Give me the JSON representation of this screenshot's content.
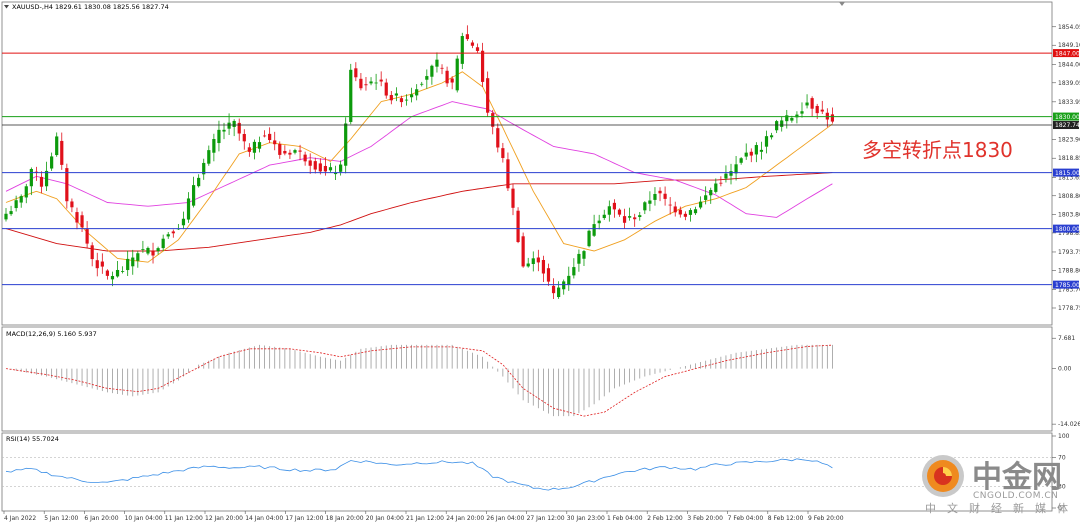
{
  "header": {
    "menu_icon": "triangle-down-icon",
    "symbol_line": "XAUUSD-,H4  1829.61 1830.08 1825.56 1827.74",
    "macd_label": "MACD(12,26,9) 5.160 5.937",
    "rsi_label": "RSI(14) 55.7024"
  },
  "annotation": {
    "text": "多空转折点1830",
    "color": "#e0322b"
  },
  "watermark": {
    "title": "中金网",
    "url": "CNGOLD.COM.CN",
    "subtitle": "中文财经新媒体"
  },
  "colors": {
    "bull": "#0c9a0c",
    "bear": "#e0101a",
    "ma_fast": "#f0a020",
    "ma_mid": "#e040e0",
    "ma_slow": "#d01010",
    "resistance": "#e01010",
    "support": "#2a3fd0",
    "pivot": "#18a018",
    "macd_signal": "#e02020",
    "rsi_line": "#3a8ee6"
  },
  "chart_data": [
    {
      "type": "candlestick",
      "symbol": "XAUUSD-",
      "timeframe": "H4",
      "ylim": [
        1775,
        1858
      ],
      "price_ticks": [
        "1854.05",
        "1849.10",
        "1844.00",
        "1839.05",
        "1833.95",
        "1823.90",
        "1818.85",
        "1813.65",
        "1808.80",
        "1803.80",
        "1798.85",
        "1793.75",
        "1788.80",
        "1783.70",
        "1778.75"
      ],
      "x_ticks": [
        "4 Jan 2022",
        "5 Jan 12:00",
        "6 Jan 20:00",
        "10 Jan 04:00",
        "11 Jan 12:00",
        "12 Jan 20:00",
        "14 Jan 04:00",
        "17 Jan 12:00",
        "18 Jan 20:00",
        "20 Jan 04:00",
        "21 Jan 12:00",
        "24 Jan 20:00",
        "26 Jan 04:00",
        "27 Jan 12:00",
        "30 Jan 23:00",
        "1 Feb 04:00",
        "2 Feb 12:00",
        "3 Feb 20:00",
        "7 Feb 04:00",
        "8 Feb 12:00",
        "9 Feb 20:00"
      ],
      "horizontal_levels": [
        {
          "price": 1847.0,
          "label": "1847.00",
          "color": "#e01010"
        },
        {
          "price": 1830.0,
          "label": "1830.00",
          "color": "#18a018"
        },
        {
          "price": 1827.74,
          "label": "1827.74",
          "color": "#222222"
        },
        {
          "price": 1815.0,
          "label": "1815.00",
          "color": "#2a3fd0"
        },
        {
          "price": 1800.0,
          "label": "1800.00",
          "color": "#2a3fd0"
        },
        {
          "price": 1785.0,
          "label": "1785.00",
          "color": "#2a3fd0"
        }
      ],
      "anchors": [
        [
          0,
          1804
        ],
        [
          3,
          1808
        ],
        [
          5,
          1816
        ],
        [
          7,
          1812
        ],
        [
          10,
          1824
        ],
        [
          12,
          1808
        ],
        [
          15,
          1800
        ],
        [
          17,
          1792
        ],
        [
          20,
          1787
        ],
        [
          23,
          1789
        ],
        [
          26,
          1794
        ],
        [
          29,
          1794
        ],
        [
          32,
          1799
        ],
        [
          35,
          1802
        ],
        [
          37,
          1812
        ],
        [
          40,
          1820
        ],
        [
          42,
          1826
        ],
        [
          45,
          1828
        ],
        [
          48,
          1820
        ],
        [
          51,
          1826
        ],
        [
          54,
          1820
        ],
        [
          57,
          1821
        ],
        [
          60,
          1818
        ],
        [
          63,
          1815
        ],
        [
          66,
          1816
        ],
        [
          68,
          1842
        ],
        [
          70,
          1838
        ],
        [
          73,
          1840
        ],
        [
          76,
          1835
        ],
        [
          79,
          1835
        ],
        [
          82,
          1840
        ],
        [
          85,
          1844
        ],
        [
          88,
          1838
        ],
        [
          90,
          1852
        ],
        [
          93,
          1848
        ],
        [
          95,
          1831
        ],
        [
          98,
          1818
        ],
        [
          100,
          1805
        ],
        [
          102,
          1790
        ],
        [
          105,
          1792
        ],
        [
          108,
          1782
        ],
        [
          111,
          1788
        ],
        [
          114,
          1795
        ],
        [
          116,
          1802
        ],
        [
          119,
          1806
        ],
        [
          122,
          1802
        ],
        [
          125,
          1804
        ],
        [
          128,
          1810
        ],
        [
          131,
          1806
        ],
        [
          134,
          1804
        ],
        [
          137,
          1807
        ],
        [
          140,
          1812
        ],
        [
          143,
          1815
        ],
        [
          146,
          1820
        ],
        [
          149,
          1822
        ],
        [
          152,
          1828
        ],
        [
          155,
          1830
        ],
        [
          158,
          1834
        ],
        [
          160,
          1832
        ],
        [
          162,
          1830
        ],
        [
          163,
          1828
        ]
      ],
      "ma_fast_anchors": [
        [
          0,
          1807
        ],
        [
          6,
          1810
        ],
        [
          10,
          1808
        ],
        [
          16,
          1799
        ],
        [
          22,
          1792
        ],
        [
          28,
          1791
        ],
        [
          34,
          1797
        ],
        [
          40,
          1808
        ],
        [
          46,
          1820
        ],
        [
          52,
          1823
        ],
        [
          58,
          1822
        ],
        [
          64,
          1818
        ],
        [
          68,
          1824
        ],
        [
          74,
          1834
        ],
        [
          80,
          1836
        ],
        [
          86,
          1839
        ],
        [
          90,
          1842
        ],
        [
          94,
          1838
        ],
        [
          98,
          1827
        ],
        [
          104,
          1810
        ],
        [
          110,
          1796
        ],
        [
          116,
          1794
        ],
        [
          122,
          1797
        ],
        [
          128,
          1802
        ],
        [
          134,
          1806
        ],
        [
          140,
          1808
        ],
        [
          146,
          1811
        ],
        [
          152,
          1817
        ],
        [
          158,
          1823
        ],
        [
          163,
          1828
        ]
      ],
      "ma_mid_anchors": [
        [
          0,
          1810
        ],
        [
          6,
          1814
        ],
        [
          12,
          1812
        ],
        [
          20,
          1807
        ],
        [
          28,
          1806
        ],
        [
          36,
          1807
        ],
        [
          44,
          1812
        ],
        [
          52,
          1817
        ],
        [
          60,
          1819
        ],
        [
          66,
          1818
        ],
        [
          72,
          1822
        ],
        [
          80,
          1830
        ],
        [
          88,
          1834
        ],
        [
          95,
          1832
        ],
        [
          100,
          1828
        ],
        [
          108,
          1822
        ],
        [
          116,
          1820
        ],
        [
          124,
          1815
        ],
        [
          132,
          1813
        ],
        [
          140,
          1809
        ],
        [
          146,
          1804
        ],
        [
          152,
          1803
        ],
        [
          158,
          1808
        ],
        [
          163,
          1812
        ]
      ],
      "ma_slow_anchors": [
        [
          0,
          1800
        ],
        [
          10,
          1796
        ],
        [
          20,
          1794
        ],
        [
          30,
          1794
        ],
        [
          40,
          1795
        ],
        [
          50,
          1797
        ],
        [
          60,
          1799
        ],
        [
          66,
          1801
        ],
        [
          72,
          1804
        ],
        [
          80,
          1807
        ],
        [
          90,
          1810
        ],
        [
          100,
          1812
        ],
        [
          110,
          1812
        ],
        [
          120,
          1812
        ],
        [
          130,
          1813
        ],
        [
          140,
          1813
        ],
        [
          150,
          1814
        ],
        [
          163,
          1815
        ]
      ]
    },
    {
      "type": "bar",
      "indicator": "MACD(12,26,9)",
      "values_latest": [
        5.16,
        5.937
      ],
      "ylim": [
        -15,
        9
      ],
      "y_ticks": [
        "7.681",
        "0.00",
        "-14.026"
      ],
      "histogram_anchors": [
        [
          0,
          0
        ],
        [
          8,
          -2
        ],
        [
          14,
          -4
        ],
        [
          20,
          -6
        ],
        [
          25,
          -7
        ],
        [
          30,
          -6
        ],
        [
          34,
          -3
        ],
        [
          38,
          1
        ],
        [
          44,
          4
        ],
        [
          50,
          6
        ],
        [
          56,
          5
        ],
        [
          62,
          3
        ],
        [
          66,
          2
        ],
        [
          70,
          5
        ],
        [
          76,
          6
        ],
        [
          82,
          6
        ],
        [
          88,
          6
        ],
        [
          94,
          3
        ],
        [
          98,
          -2
        ],
        [
          102,
          -8
        ],
        [
          108,
          -12
        ],
        [
          112,
          -12
        ],
        [
          116,
          -9
        ],
        [
          120,
          -5
        ],
        [
          126,
          -2
        ],
        [
          132,
          0
        ],
        [
          138,
          2
        ],
        [
          144,
          4
        ],
        [
          150,
          5
        ],
        [
          156,
          6
        ],
        [
          163,
          6
        ]
      ],
      "signal_anchors": [
        [
          0,
          0
        ],
        [
          8,
          -1.5
        ],
        [
          14,
          -3
        ],
        [
          20,
          -5
        ],
        [
          26,
          -5.8
        ],
        [
          30,
          -5
        ],
        [
          36,
          -1
        ],
        [
          42,
          3
        ],
        [
          48,
          5
        ],
        [
          56,
          5
        ],
        [
          62,
          4
        ],
        [
          66,
          3
        ],
        [
          72,
          4.5
        ],
        [
          80,
          5.5
        ],
        [
          88,
          5.5
        ],
        [
          94,
          4.5
        ],
        [
          98,
          1
        ],
        [
          102,
          -5
        ],
        [
          108,
          -10
        ],
        [
          114,
          -12
        ],
        [
          118,
          -11
        ],
        [
          124,
          -6
        ],
        [
          130,
          -2
        ],
        [
          136,
          0
        ],
        [
          142,
          2
        ],
        [
          150,
          4
        ],
        [
          158,
          5.6
        ],
        [
          163,
          5.937
        ]
      ]
    },
    {
      "type": "line",
      "indicator": "RSI(14)",
      "value_latest": 55.7024,
      "ylim": [
        0,
        100
      ],
      "y_ticks": [
        "100",
        "70",
        "30",
        "0"
      ],
      "anchors": [
        [
          0,
          50
        ],
        [
          5,
          54
        ],
        [
          10,
          45
        ],
        [
          15,
          38
        ],
        [
          20,
          35
        ],
        [
          25,
          41
        ],
        [
          30,
          47
        ],
        [
          35,
          53
        ],
        [
          40,
          58
        ],
        [
          45,
          56
        ],
        [
          50,
          57
        ],
        [
          55,
          54
        ],
        [
          60,
          52
        ],
        [
          65,
          54
        ],
        [
          68,
          66
        ],
        [
          72,
          64
        ],
        [
          76,
          60
        ],
        [
          82,
          63
        ],
        [
          88,
          64
        ],
        [
          92,
          62
        ],
        [
          96,
          44
        ],
        [
          100,
          35
        ],
        [
          104,
          28
        ],
        [
          108,
          26
        ],
        [
          112,
          30
        ],
        [
          116,
          38
        ],
        [
          120,
          47
        ],
        [
          124,
          52
        ],
        [
          130,
          57
        ],
        [
          136,
          54
        ],
        [
          140,
          60
        ],
        [
          146,
          63
        ],
        [
          152,
          66
        ],
        [
          158,
          68
        ],
        [
          161,
          62
        ],
        [
          163,
          55.7024
        ]
      ]
    }
  ]
}
